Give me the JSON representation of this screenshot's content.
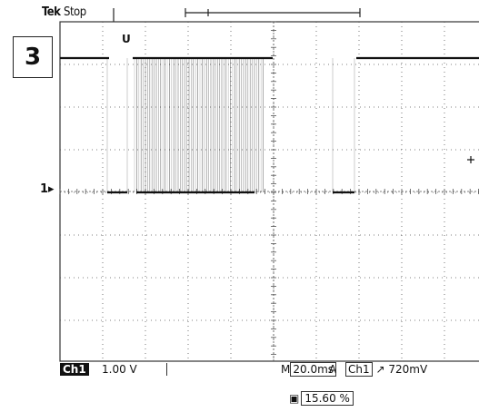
{
  "header": {
    "brand": "Tek",
    "state": "Stop"
  },
  "panel_label": "3",
  "trigger_marker": "U",
  "ch1_ground_marker": "1▸",
  "status_bar": {
    "channel": "Ch1",
    "volts_per_div": "1.00 V",
    "timebase_prefix": "M",
    "timebase": "20.0ms",
    "trigger_mode": "A",
    "trigger_source": "Ch1",
    "trigger_slope": "↗",
    "trigger_level": "720mV"
  },
  "trigger_position": {
    "icon": "trigger-position-icon",
    "value": "15.60 %"
  },
  "colors": {
    "trace": "#111111",
    "grid": "#555555",
    "background": "#ffffff"
  }
}
